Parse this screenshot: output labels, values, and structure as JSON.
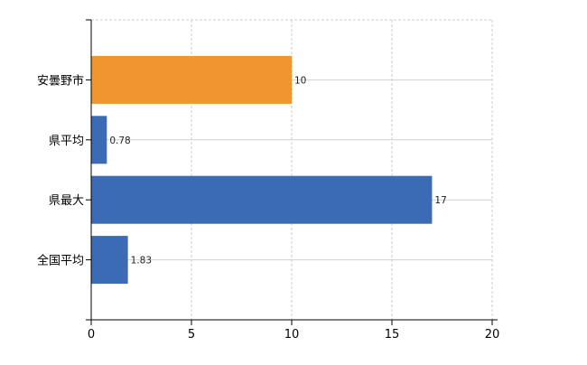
{
  "chart_data": {
    "type": "bar",
    "orientation": "horizontal",
    "title": "",
    "xlabel": "",
    "ylabel": "",
    "categories": [
      "安曇野市",
      "県平均",
      "県最大",
      "全国平均"
    ],
    "values": [
      10,
      0.78,
      17,
      1.83
    ],
    "data_labels": [
      "10",
      "0.78",
      "17",
      "1.83"
    ],
    "bar_colors": [
      "#f0952f",
      "#3b6bb4",
      "#3b6bb4",
      "#3b6bb4"
    ],
    "xlim": [
      0,
      20
    ],
    "xticks": [
      0,
      5,
      10,
      15,
      20
    ],
    "xtick_labels": [
      "0",
      "5",
      "10",
      "15",
      "20"
    ],
    "grid": true,
    "legend": "none"
  }
}
